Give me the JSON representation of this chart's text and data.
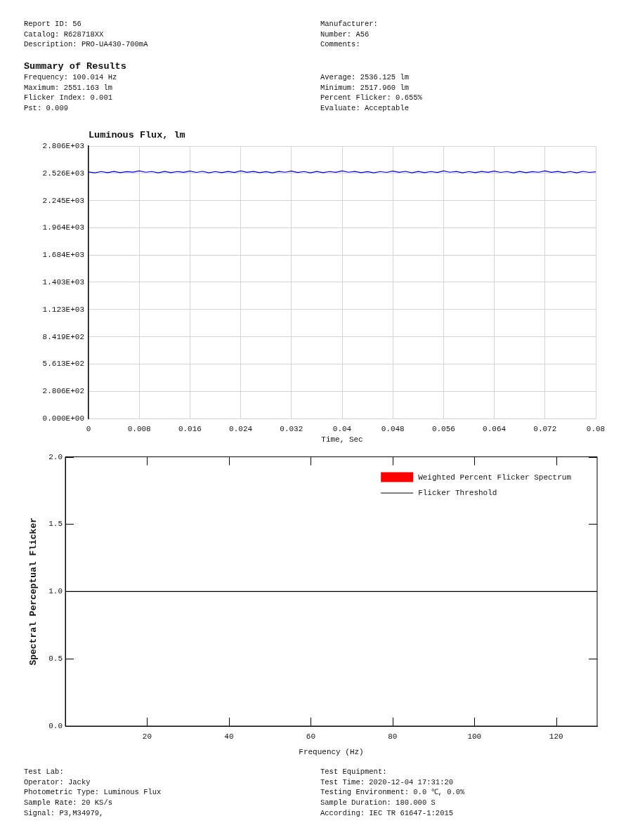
{
  "chart_data": [
    {
      "type": "other",
      "annotations": [
        "Report ID: 56",
        "Manufacturer:",
        "Catalog: R628718XX",
        "Number: A56",
        "Description: PRO-UA430-700mA",
        "Comments:"
      ]
    },
    {
      "type": "other",
      "title": "Summary of Results",
      "annotations": [
        "Frequency: 100.014 Hz",
        "Average: 2536.125 lm",
        "Maximum: 2551.163 lm",
        "Minimum: 2517.960 lm",
        "Flicker Index: 0.001",
        "Percent Flicker: 0.655%",
        "Pst: 0.009",
        "Evaluate: Acceptable"
      ]
    },
    {
      "type": "line",
      "title": "Luminous Flux, lm",
      "xlabel": "Time, Sec",
      "x": [
        0,
        0.001,
        0.002,
        0.003,
        0.004,
        0.005,
        0.006,
        0.007,
        0.008,
        0.009,
        0.01,
        0.011,
        0.012,
        0.013,
        0.014,
        0.015,
        0.016,
        0.017,
        0.018,
        0.019,
        0.02,
        0.021,
        0.022,
        0.023,
        0.024,
        0.025,
        0.026,
        0.027,
        0.028,
        0.029,
        0.03,
        0.031,
        0.032,
        0.033,
        0.034,
        0.035,
        0.036,
        0.037,
        0.038,
        0.039,
        0.04,
        0.041,
        0.042,
        0.043,
        0.044,
        0.045,
        0.046,
        0.047,
        0.048,
        0.049,
        0.05,
        0.051,
        0.052,
        0.053,
        0.054,
        0.055,
        0.056,
        0.057,
        0.058,
        0.059,
        0.06,
        0.061,
        0.062,
        0.063,
        0.064,
        0.065,
        0.066,
        0.067,
        0.068,
        0.069,
        0.07,
        0.071,
        0.072,
        0.073,
        0.074,
        0.075,
        0.076,
        0.077,
        0.078,
        0.079,
        0.08
      ],
      "values": [
        2540,
        2531,
        2544,
        2533,
        2545,
        2532,
        2543,
        2538,
        2550,
        2537,
        2544,
        2531,
        2545,
        2532,
        2544,
        2536,
        2549,
        2535,
        2546,
        2530,
        2544,
        2533,
        2545,
        2534,
        2550,
        2536,
        2545,
        2532,
        2543,
        2531,
        2545,
        2537,
        2549,
        2534,
        2544,
        2530,
        2545,
        2533,
        2544,
        2536,
        2550,
        2537,
        2545,
        2532,
        2543,
        2531,
        2544,
        2535,
        2549,
        2536,
        2546,
        2531,
        2545,
        2533,
        2544,
        2534,
        2550,
        2537,
        2545,
        2530,
        2544,
        2532,
        2545,
        2536,
        2549,
        2535,
        2544,
        2531,
        2545,
        2533,
        2543,
        2537,
        2550,
        2536,
        2545,
        2532,
        2544,
        2531,
        2546,
        2535,
        2541
      ],
      "color": "#0000ff",
      "xlim": [
        0,
        0.08
      ],
      "xticks": [
        0,
        0.008,
        0.016,
        0.024,
        0.032,
        0.04,
        0.048,
        0.056,
        0.064,
        0.072,
        0.08
      ],
      "ylim": [
        0,
        2806.3
      ],
      "yticks": [
        {
          "value": 0,
          "label": "0.000E+00"
        },
        {
          "value": 280.6,
          "label": "2.806E+02"
        },
        {
          "value": 561.3,
          "label": "5.613E+02"
        },
        {
          "value": 841.9,
          "label": "8.419E+02"
        },
        {
          "value": 1122.5,
          "label": "1.123E+03"
        },
        {
          "value": 1403.2,
          "label": "1.403E+03"
        },
        {
          "value": 1683.8,
          "label": "1.684E+03"
        },
        {
          "value": 1964.4,
          "label": "1.964E+03"
        },
        {
          "value": 2245.0,
          "label": "2.245E+03"
        },
        {
          "value": 2525.7,
          "label": "2.526E+03"
        },
        {
          "value": 2806.3,
          "label": "2.806E+03"
        }
      ],
      "grid": true
    },
    {
      "type": "bar",
      "xlabel": "Frequency (Hz)",
      "ylabel": "Spectral Perceptual Flicker",
      "series": [
        {
          "name": "Weighted Percent Flicker Spectrum",
          "color": "#ff0000"
        },
        {
          "name": "Flicker Threshold",
          "type": "line",
          "color": "#000000",
          "x": [
            0,
            130
          ],
          "values": [
            1,
            1
          ]
        }
      ],
      "xlim": [
        0,
        130
      ],
      "xticks": [
        20,
        40,
        60,
        80,
        100,
        120
      ],
      "ylim": [
        0,
        2
      ],
      "yticks": [
        {
          "value": 0,
          "label": "0.0"
        },
        0.5,
        {
          "value": 1,
          "label": "1.0"
        },
        1.5,
        {
          "value": 2,
          "label": "2.0"
        }
      ],
      "legend": "top right"
    },
    {
      "type": "other",
      "annotations": [
        "Test Lab:",
        "Test Equipment:",
        "Operator: Jacky",
        "Test Time: 2020-12-04 17:31:20",
        "Photometric Type: Luminous Flux",
        "Testing Environment: 0.0 ℃, 0.0%",
        "Sample Rate: 20 KS/s",
        "Sample Duration: 180.000 S",
        "Signal: P3,M34979,",
        "According: IEC TR 61647-1:2015"
      ]
    }
  ]
}
